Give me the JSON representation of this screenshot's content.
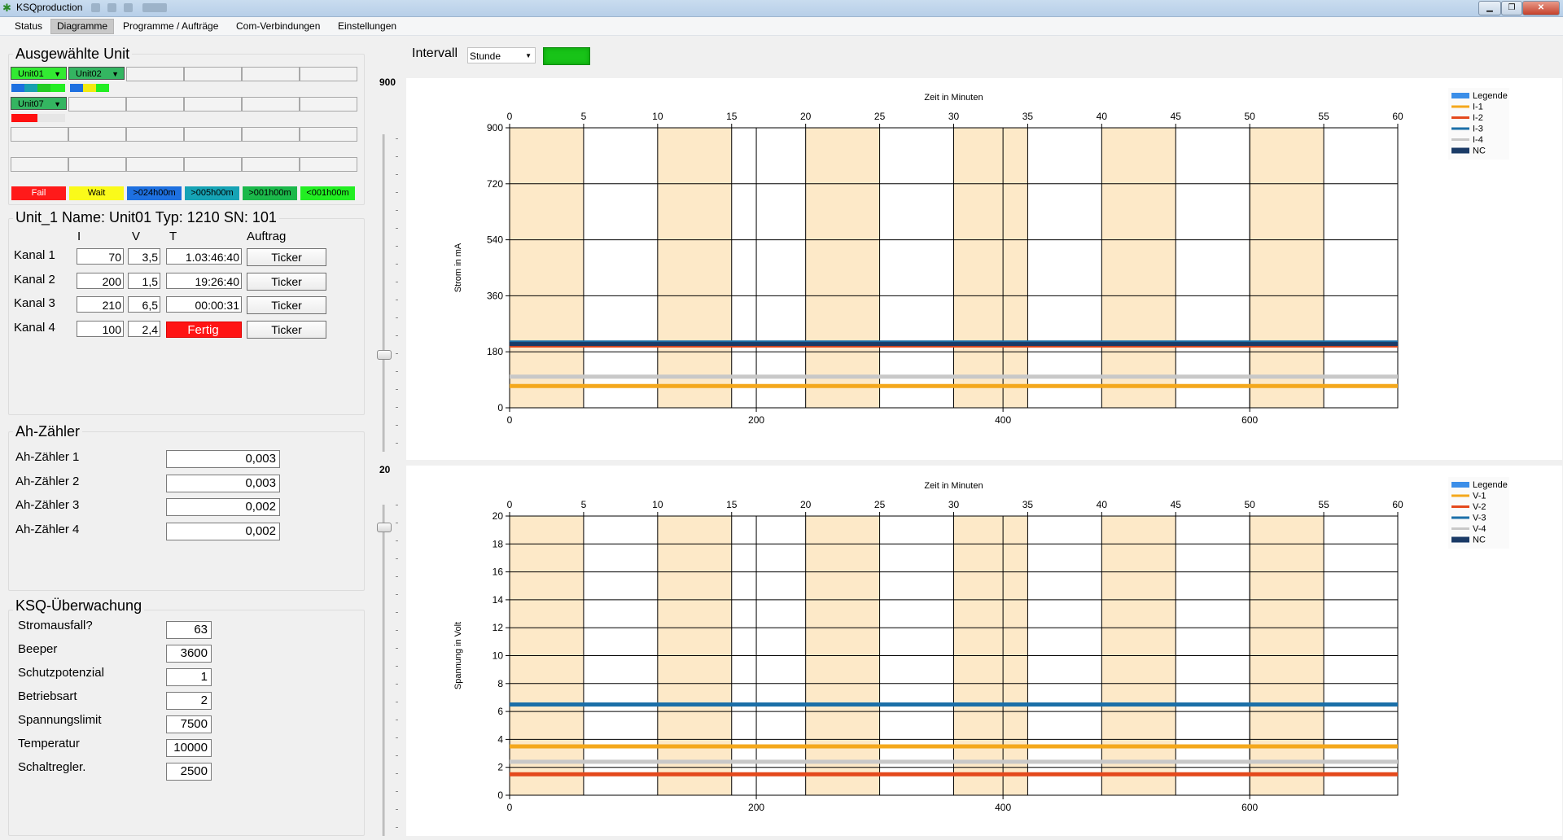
{
  "window": {
    "title": "KSQproduction"
  },
  "menu": [
    "Status",
    "Diagramme",
    "Programme / Aufträge",
    "Com-Verbindungen",
    "Einstellungen"
  ],
  "units": {
    "title": "Ausgewählte Unit",
    "unit1": "Unit01",
    "unit2": "Unit02",
    "unit7": "Unit07",
    "legend": [
      "Fail",
      "Wait",
      ">024h00m",
      ">005h00m",
      ">001h00m",
      "<001h00m"
    ]
  },
  "unit_info": {
    "header": "Unit_1 Name: Unit01 Typ: 1210 SN: 101",
    "columns": [
      "I",
      "V",
      "T",
      "Auftrag"
    ],
    "rows": [
      {
        "label": "Kanal 1",
        "i": "70",
        "v": "3,5",
        "t": "1.03:46:40",
        "button": "Ticker"
      },
      {
        "label": "Kanal 2",
        "i": "200",
        "v": "1,5",
        "t": "19:26:40",
        "button": "Ticker"
      },
      {
        "label": "Kanal 3",
        "i": "210",
        "v": "6,5",
        "t": "00:00:31",
        "button": "Ticker"
      },
      {
        "label": "Kanal 4",
        "i": "100",
        "v": "2,4",
        "t": "Fertig",
        "button": "Ticker"
      }
    ]
  },
  "ah": {
    "title": "Ah-Zähler",
    "rows": [
      {
        "label": "Ah-Zähler 1",
        "value": "0,003"
      },
      {
        "label": "Ah-Zähler 2",
        "value": "0,003"
      },
      {
        "label": "Ah-Zähler 3",
        "value": "0,002"
      },
      {
        "label": "Ah-Zähler 4",
        "value": "0,002"
      }
    ]
  },
  "ksq": {
    "title": "KSQ-Überwachung",
    "rows": [
      {
        "label": "Stromausfall?",
        "value": "63"
      },
      {
        "label": "Beeper",
        "value": "3600"
      },
      {
        "label": "Schutzpotenzial",
        "value": "1"
      },
      {
        "label": "Betriebsart",
        "value": "2"
      },
      {
        "label": "Spannungslimit",
        "value": "7500"
      },
      {
        "label": "Temperatur",
        "value": "10000"
      },
      {
        "label": "Schaltregler.",
        "value": "2500"
      }
    ]
  },
  "interval": {
    "label": "Intervall",
    "value": "Stunde"
  },
  "sliders": {
    "current_max": "900",
    "voltage_max": "20"
  },
  "chart_data": [
    {
      "type": "line",
      "xlabel_top": "Zeit in Minuten",
      "ylabel": "Strom in mA",
      "x_top_ticks": [
        "0",
        "5",
        "10",
        "15",
        "20",
        "25",
        "30",
        "35",
        "40",
        "45",
        "50",
        "55",
        "60"
      ],
      "x_bottom_ticks": [
        "0",
        "200",
        "400",
        "600"
      ],
      "y_ticks": [
        "0",
        "180",
        "360",
        "540",
        "720",
        "900"
      ],
      "ylim": [
        0,
        900
      ],
      "xlim_top": [
        0,
        60
      ],
      "xlim_bottom": [
        0,
        720
      ],
      "bands_minutes": [
        [
          0,
          5
        ],
        [
          10,
          15
        ],
        [
          20,
          25
        ],
        [
          30,
          35
        ],
        [
          40,
          45
        ],
        [
          50,
          55
        ]
      ],
      "legend_labels": [
        "Legende",
        "I-1",
        "I-2",
        "I-3",
        "I-4",
        "NC"
      ],
      "legend_colors": [
        "#3b8ee8",
        "#f4a81c",
        "#e4491c",
        "#1b6fa8",
        "#c8c8c8",
        "#1a3a66"
      ],
      "series": [
        {
          "name": "I-1",
          "color": "#f4a81c",
          "value": 70
        },
        {
          "name": "I-2",
          "color": "#e4491c",
          "value": 200
        },
        {
          "name": "I-3",
          "color": "#1b6fa8",
          "value": 210
        },
        {
          "name": "I-4",
          "color": "#c8c8c8",
          "value": 100
        },
        {
          "name": "NC",
          "color": "#1a3a66",
          "value": 205
        }
      ]
    },
    {
      "type": "line",
      "xlabel_top": "Zeit in Minuten",
      "ylabel": "Spannung in Volt",
      "x_top_ticks": [
        "0",
        "5",
        "10",
        "15",
        "20",
        "25",
        "30",
        "35",
        "40",
        "45",
        "50",
        "55",
        "60"
      ],
      "x_bottom_ticks": [
        "0",
        "200",
        "400",
        "600"
      ],
      "y_ticks": [
        "0",
        "2",
        "4",
        "6",
        "8",
        "10",
        "12",
        "14",
        "16",
        "18",
        "20"
      ],
      "ylim": [
        0,
        20
      ],
      "xlim_top": [
        0,
        60
      ],
      "xlim_bottom": [
        0,
        720
      ],
      "bands_minutes": [
        [
          0,
          5
        ],
        [
          10,
          15
        ],
        [
          20,
          25
        ],
        [
          30,
          35
        ],
        [
          40,
          45
        ],
        [
          50,
          55
        ]
      ],
      "legend_labels": [
        "Legende",
        "V-1",
        "V-2",
        "V-3",
        "V-4",
        "NC"
      ],
      "legend_colors": [
        "#3b8ee8",
        "#f4a81c",
        "#e4491c",
        "#1b6fa8",
        "#c8c8c8",
        "#1a3a66"
      ],
      "series": [
        {
          "name": "V-1",
          "color": "#f4a81c",
          "value": 3.5
        },
        {
          "name": "V-2",
          "color": "#e4491c",
          "value": 1.5
        },
        {
          "name": "V-3",
          "color": "#1b6fa8",
          "value": 6.5
        },
        {
          "name": "V-4",
          "color": "#c8c8c8",
          "value": 2.4
        }
      ]
    }
  ]
}
